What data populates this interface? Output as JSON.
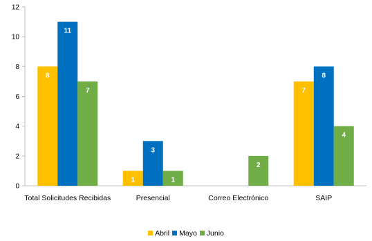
{
  "chart_data": {
    "type": "bar",
    "categories": [
      "Total Solicitudes Recibidas",
      "Presencial",
      "Correo Electrónico",
      "SAIP"
    ],
    "series": [
      {
        "name": "Abril",
        "color": "#FFC000",
        "values": [
          8,
          1,
          0,
          7
        ]
      },
      {
        "name": "Mayo",
        "color": "#0070C0",
        "values": [
          11,
          3,
          0,
          8
        ]
      },
      {
        "name": "Junio",
        "color": "#70AD47",
        "values": [
          7,
          1,
          2,
          4
        ]
      }
    ],
    "data_labels": [
      [
        "8",
        "1",
        "",
        "7"
      ],
      [
        "11",
        "3",
        "",
        "8"
      ],
      [
        "7",
        "1",
        "2",
        "4"
      ]
    ],
    "ylim": [
      0,
      12
    ],
    "yticks": [
      0,
      2,
      4,
      6,
      8,
      10,
      12
    ],
    "grid": false,
    "legend_position": "bottom"
  }
}
